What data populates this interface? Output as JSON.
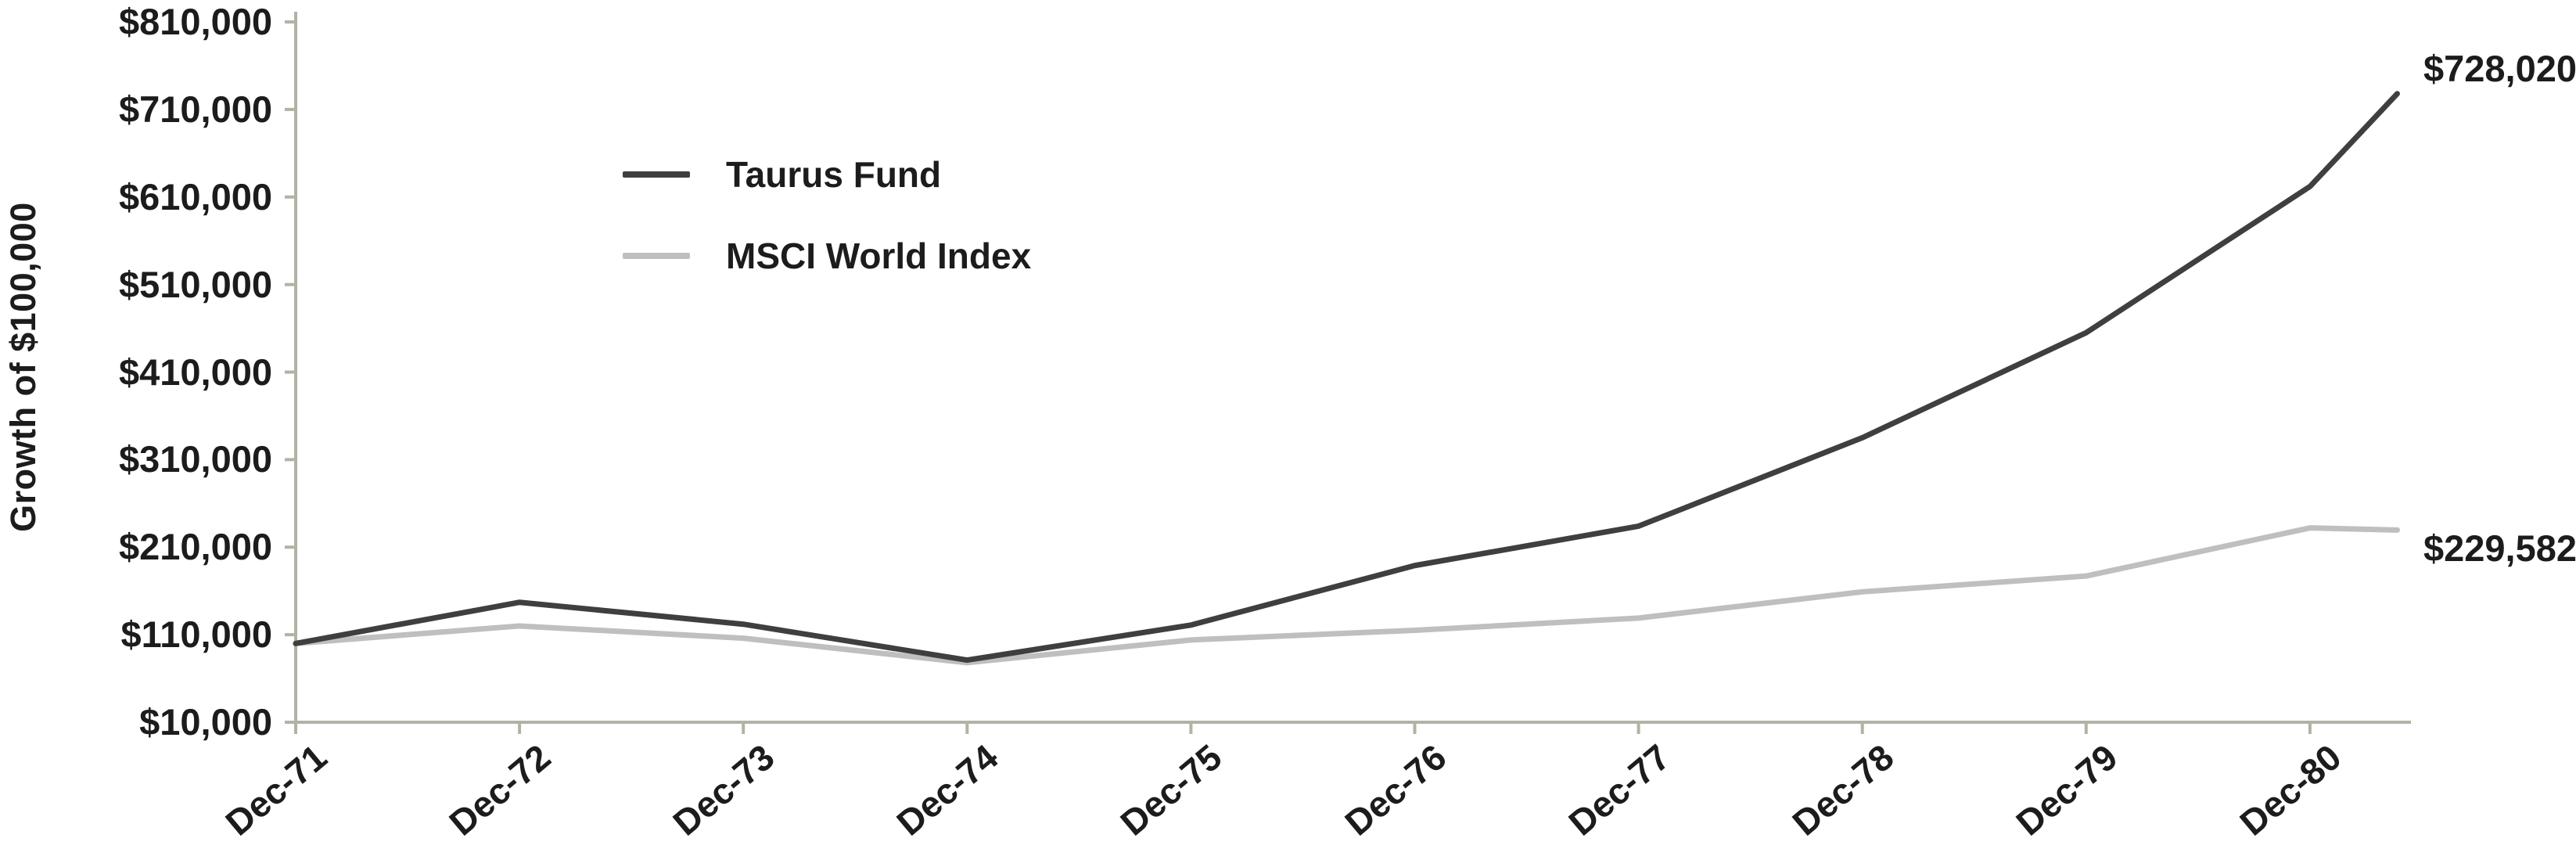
{
  "chart_data": {
    "type": "line",
    "ylabel": "Growth of $100,000",
    "grid": false,
    "legend_position": "inside-top-left",
    "axis_color": "#b2b2a5",
    "text_color": "#1c1c1c",
    "ylim": [
      10000,
      810000
    ],
    "y_ticks": {
      "values": [
        10000,
        110000,
        210000,
        310000,
        410000,
        510000,
        610000,
        710000,
        810000
      ],
      "labels": [
        "$10,000",
        "$110,000",
        "$210,000",
        "$310,000",
        "$410,000",
        "$510,000",
        "$610,000",
        "$710,000",
        "$810,000"
      ]
    },
    "categories": [
      "Dec-71",
      "Dec-72",
      "Dec-73",
      "Dec-74",
      "Dec-75",
      "Dec-76",
      "Dec-77",
      "Dec-78",
      "Dec-79",
      "Dec-80"
    ],
    "end_offset_years": 0.39,
    "series": [
      {
        "name": "Taurus Fund",
        "color": "#3f3f3f",
        "values": [
          100000,
          147000,
          122000,
          81000,
          121000,
          189000,
          234000,
          335000,
          455000,
          622000
        ],
        "end_value": 728020,
        "end_label": "$728,020"
      },
      {
        "name": "MSCI World Index",
        "color": "#bfbfbf",
        "values": [
          100000,
          120000,
          106000,
          78000,
          104000,
          115000,
          129000,
          159000,
          177000,
          232000
        ],
        "end_value": 229582,
        "end_label": "$229,582"
      }
    ]
  }
}
